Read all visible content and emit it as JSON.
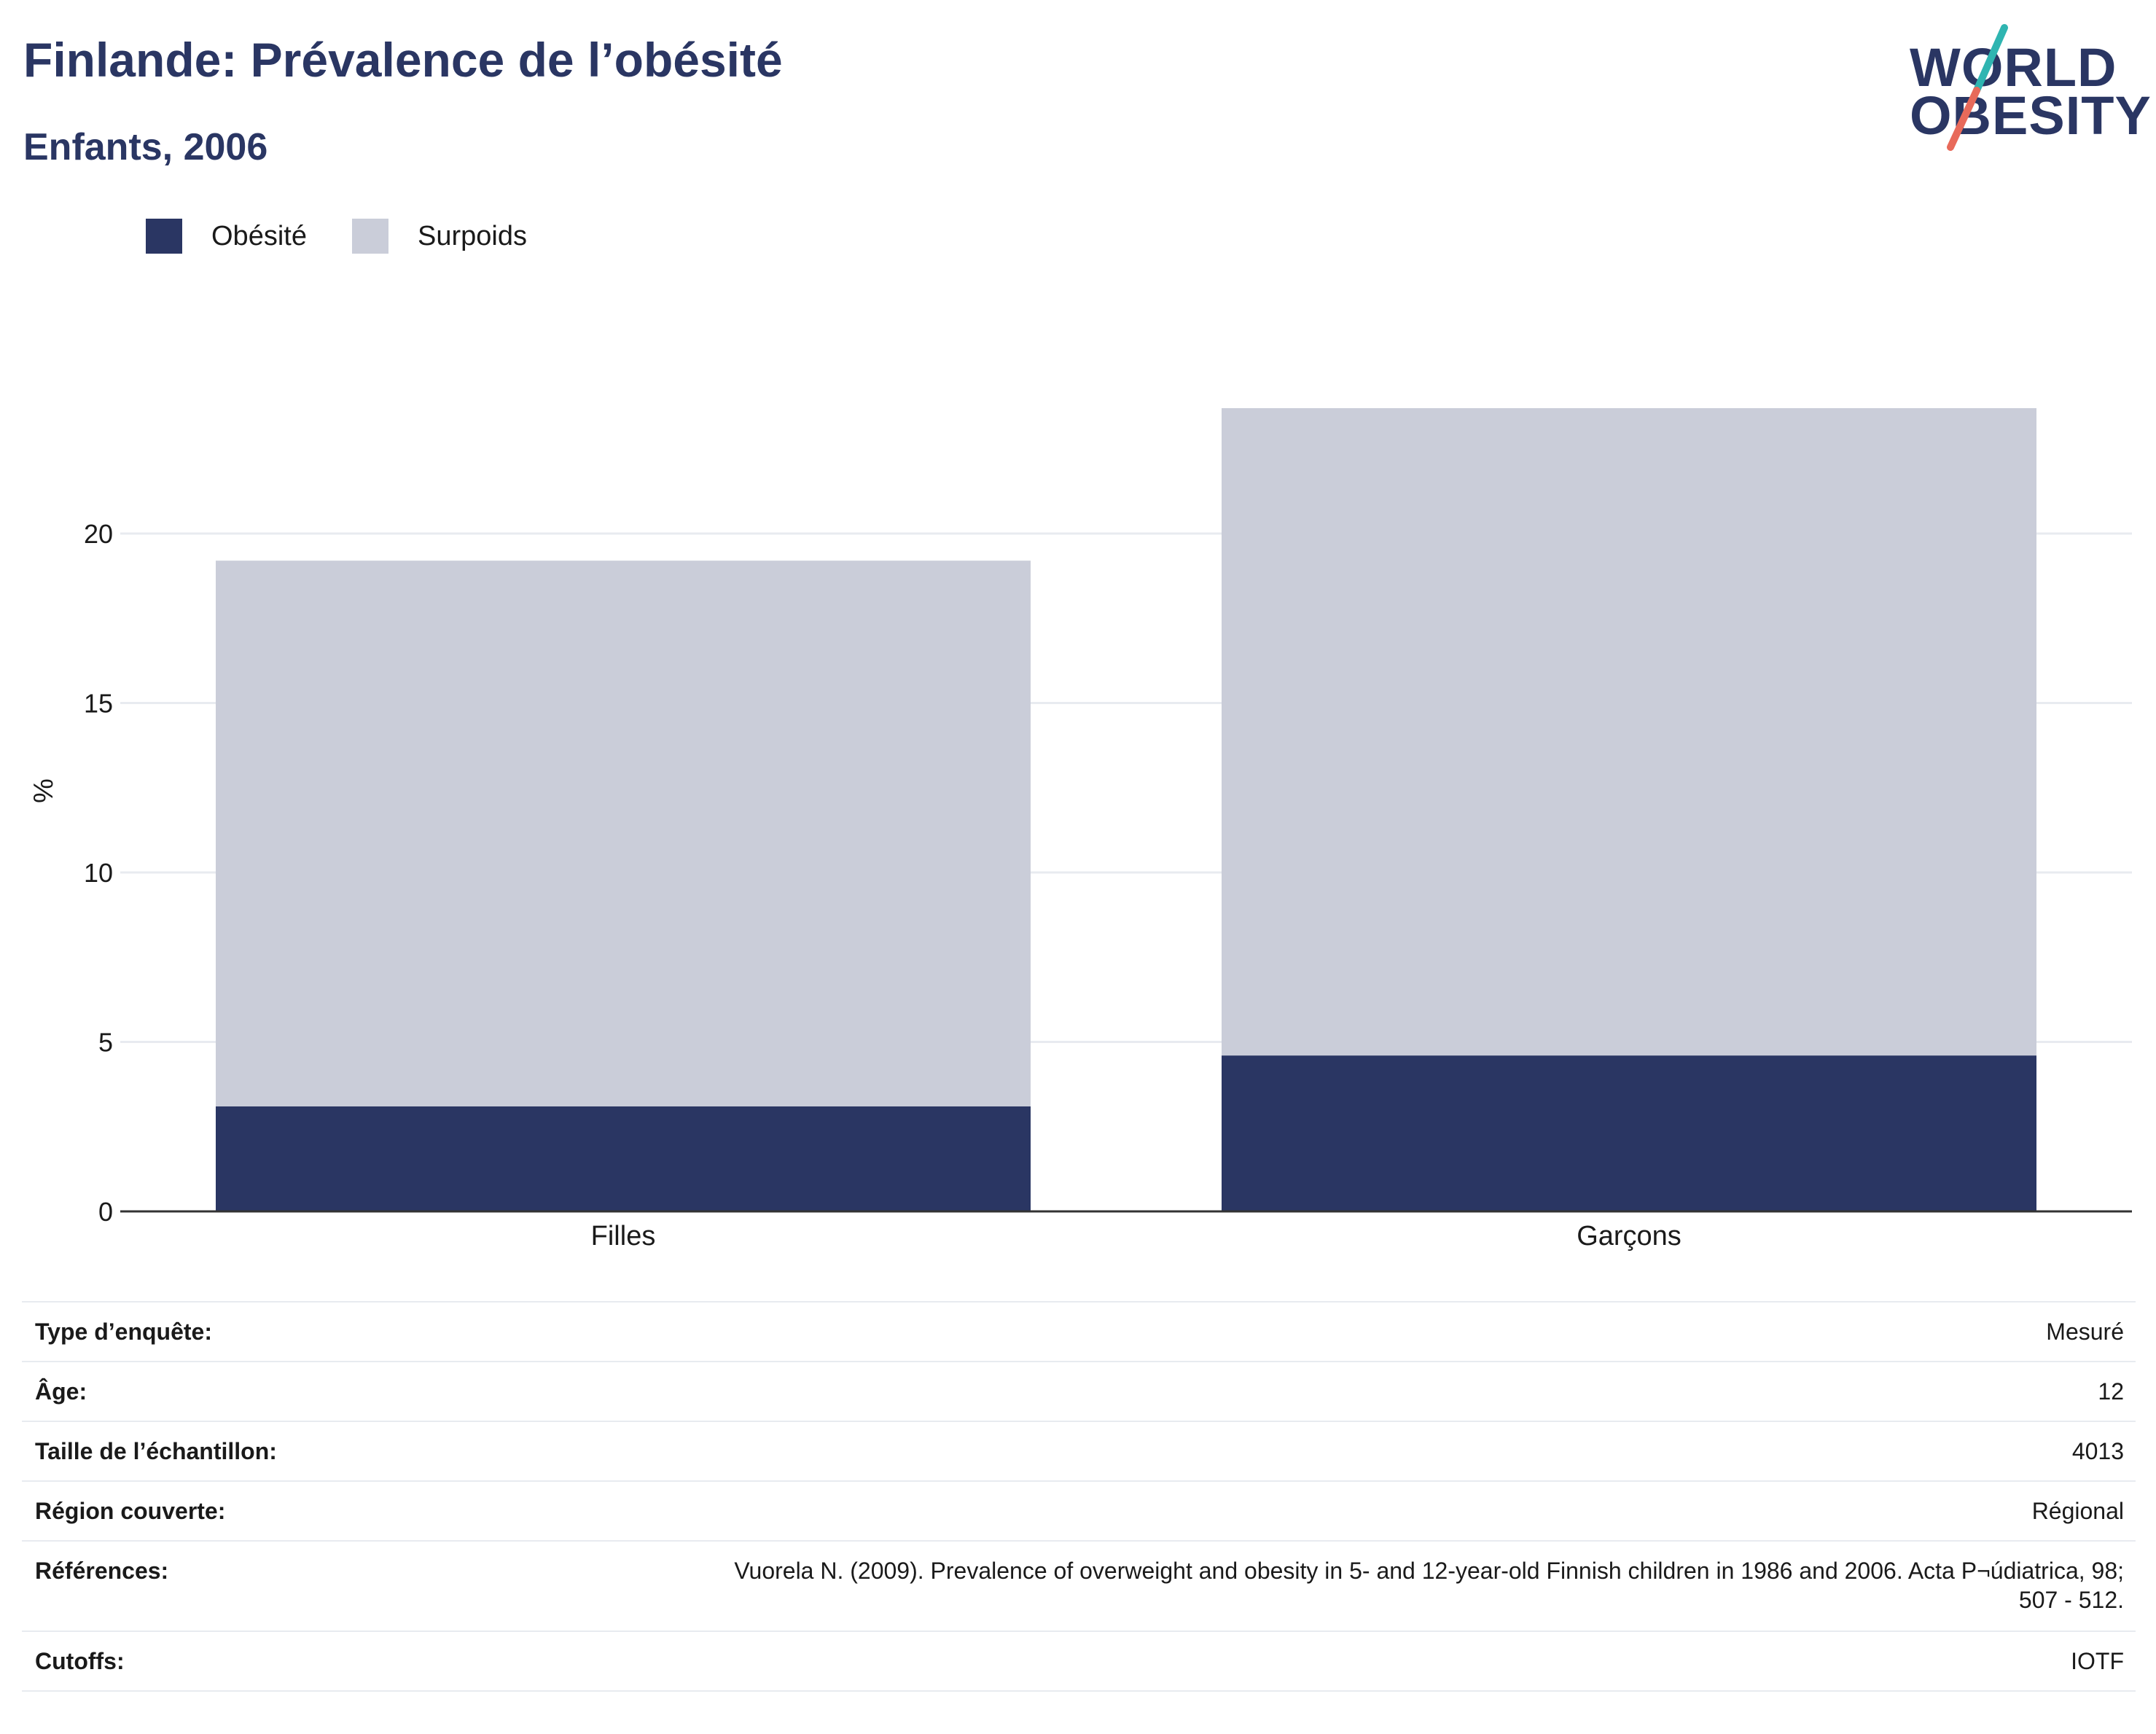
{
  "header": {
    "title": "Finlande: Prévalence de l’obésité",
    "subtitle": "Enfants, 2006"
  },
  "logo": {
    "line1": "WORLD",
    "line2": "OBESITY",
    "colors": {
      "text": "#2a3663",
      "slash_top": "#2fb5b1",
      "slash_bottom": "#e86a5a"
    }
  },
  "colors": {
    "obesite": "#2a3663",
    "surpoids": "#cacdd9",
    "grid": "#e8ebf0",
    "axis": "#333333"
  },
  "chart_data": {
    "type": "bar",
    "stacked": true,
    "categories": [
      "Filles",
      "Garçons"
    ],
    "series": [
      {
        "name": "Obésité",
        "values": [
          3.1,
          4.6
        ]
      },
      {
        "name": "Surpoids",
        "values": [
          16.1,
          19.1
        ]
      }
    ],
    "totals": [
      19.2,
      23.7
    ],
    "ylabel": "%",
    "xlabel": "",
    "ylim": [
      0,
      25
    ],
    "yticks": [
      0,
      5,
      10,
      15,
      20
    ],
    "grid": true,
    "legend_position": "top-left"
  },
  "info_table": [
    {
      "label": "Type d’enquête:",
      "value": "Mesuré"
    },
    {
      "label": "Âge:",
      "value": "12"
    },
    {
      "label": "Taille de l’échantillon:",
      "value": "4013"
    },
    {
      "label": "Région couverte:",
      "value": "Régional"
    },
    {
      "label": "Références:",
      "value_lines": [
        "Vuorela N. (2009). Prevalence of overweight and obesity in 5- and 12-year-old Finnish children in 1986 and 2006. Acta P¬údiatrica, 98;",
        "507 - 512."
      ]
    },
    {
      "label": "Cutoffs:",
      "value": "IOTF"
    }
  ]
}
